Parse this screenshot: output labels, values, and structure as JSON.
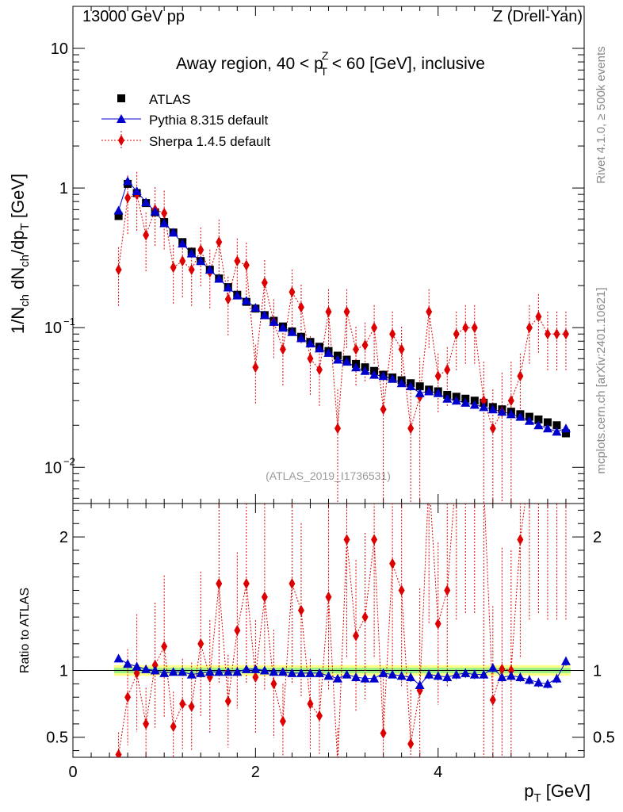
{
  "header": {
    "left": "13000 GeV pp",
    "right": "Z (Drell-Yan)"
  },
  "side_label": "Rivet 4.1.0, ≥ 500k events",
  "side_label2": "mcplots.cern.ch [arXiv:2401.10621]",
  "chart_data": {
    "type": "scatter",
    "title": "Away region, 40 < p_T^Z < 60 [GeV], inclusive",
    "title_parts": {
      "pre": "Away region, 40 < p",
      "sup": "Z",
      "sub": "T",
      "post": " < 60 [GeV], inclusive"
    },
    "analysis_id": "(ATLAS_2019_I1736531)",
    "ylabel": "1/N_ch dN_ch/dp_T [GeV]",
    "ratio_ylabel": "Ratio to ATLAS",
    "xlabel": "p_T [GeV]",
    "xlim": [
      0,
      5.6
    ],
    "ylim": [
      0.0055,
      20
    ],
    "ratio_ylim": [
      0.35,
      2.25
    ],
    "x_ticks": [
      "0",
      "2",
      "4"
    ],
    "y_ticks": [
      "10",
      "1",
      "10^-1",
      "10^-2"
    ],
    "ratio_ticks": [
      "2",
      "1",
      "0.5"
    ],
    "legend": [
      "ATLAS",
      "Pythia 8.315 default",
      "Sherpa 1.4.5 default"
    ],
    "x": [
      0.5,
      0.6,
      0.7,
      0.8,
      0.9,
      1.0,
      1.1,
      1.2,
      1.3,
      1.4,
      1.5,
      1.6,
      1.7,
      1.8,
      1.9,
      2.0,
      2.1,
      2.2,
      2.3,
      2.4,
      2.5,
      2.6,
      2.7,
      2.8,
      2.9,
      3.0,
      3.1,
      3.2,
      3.3,
      3.4,
      3.5,
      3.6,
      3.7,
      3.8,
      3.9,
      4.0,
      4.1,
      4.2,
      4.3,
      4.4,
      4.5,
      4.6,
      4.7,
      4.8,
      4.9,
      5.0,
      5.1,
      5.2,
      5.3,
      5.4
    ],
    "series": [
      {
        "name": "ATLAS",
        "color": "#000000",
        "marker": "square",
        "values": [
          0.63,
          1.07,
          0.92,
          0.78,
          0.67,
          0.57,
          0.48,
          0.41,
          0.35,
          0.3,
          0.26,
          0.225,
          0.195,
          0.172,
          0.153,
          0.137,
          0.123,
          0.112,
          0.102,
          0.094,
          0.086,
          0.079,
          0.073,
          0.068,
          0.063,
          0.059,
          0.055,
          0.052,
          0.049,
          0.046,
          0.044,
          0.042,
          0.04,
          0.038,
          0.036,
          0.035,
          0.033,
          0.032,
          0.031,
          0.03,
          0.029,
          0.027,
          0.026,
          0.025,
          0.024,
          0.023,
          0.022,
          0.021,
          0.02,
          0.0175
        ]
      },
      {
        "name": "Pythia 8.315 default",
        "color": "#0000cc",
        "marker": "triangle",
        "values": [
          0.69,
          1.12,
          0.95,
          0.79,
          0.68,
          0.56,
          0.48,
          0.4,
          0.34,
          0.3,
          0.26,
          0.224,
          0.194,
          0.17,
          0.156,
          0.139,
          0.123,
          0.11,
          0.1,
          0.093,
          0.084,
          0.077,
          0.071,
          0.066,
          0.059,
          0.057,
          0.052,
          0.049,
          0.046,
          0.045,
          0.043,
          0.04,
          0.038,
          0.034,
          0.035,
          0.034,
          0.031,
          0.03,
          0.029,
          0.028,
          0.027,
          0.026,
          0.025,
          0.024,
          0.023,
          0.0215,
          0.02,
          0.019,
          0.018,
          0.019
        ],
        "ratio": [
          1.09,
          1.05,
          1.03,
          1.01,
          1.0,
          0.98,
          0.99,
          0.99,
          0.97,
          0.98,
          0.99,
          0.99,
          0.99,
          0.99,
          1.01,
          1.01,
          1.0,
          0.99,
          0.99,
          0.98,
          0.98,
          0.98,
          0.98,
          0.96,
          0.94,
          0.97,
          0.95,
          0.94,
          0.94,
          0.98,
          0.97,
          0.96,
          0.95,
          0.89,
          0.97,
          0.96,
          0.95,
          0.97,
          0.98,
          0.97,
          0.97,
          1.02,
          0.95,
          0.96,
          0.95,
          0.93,
          0.91,
          0.9,
          0.94,
          1.07
        ]
      },
      {
        "name": "Sherpa 1.4.5 default",
        "color": "#dd0000",
        "marker": "diamond",
        "values": [
          0.26,
          0.85,
          0.9,
          0.46,
          0.7,
          0.66,
          0.27,
          0.3,
          0.26,
          0.36,
          0.25,
          0.41,
          0.16,
          0.3,
          0.28,
          0.052,
          0.21,
          0.11,
          0.07,
          0.18,
          0.14,
          0.06,
          0.05,
          0.13,
          0.019,
          0.13,
          0.07,
          0.075,
          0.1,
          0.026,
          0.09,
          0.07,
          0.019,
          0.032,
          0.13,
          0.045,
          0.05,
          0.09,
          0.1,
          0.1,
          0.03,
          0.019,
          0.025,
          0.03,
          0.045,
          0.1,
          0.12,
          0.09,
          0.09,
          0.09
        ],
        "ratio": [
          0.37,
          0.8,
          0.98,
          0.6,
          1.04,
          1.18,
          0.58,
          0.75,
          0.73,
          1.2,
          0.95,
          1.65,
          0.77,
          1.3,
          1.65,
          0.95,
          1.55,
          0.9,
          0.62,
          1.65,
          1.45,
          0.75,
          0.66,
          1.55,
          0.3,
          1.98,
          1.26,
          1.4,
          1.98,
          0.53,
          1.8,
          1.6,
          0.45,
          0.85,
          2.45,
          1.35,
          1.6,
          2.5,
          2.6,
          2.6,
          2.4,
          0.78,
          1.01,
          1.0,
          1.98,
          2.5,
          2.6,
          2.5,
          2.5,
          2.5
        ]
      }
    ]
  }
}
